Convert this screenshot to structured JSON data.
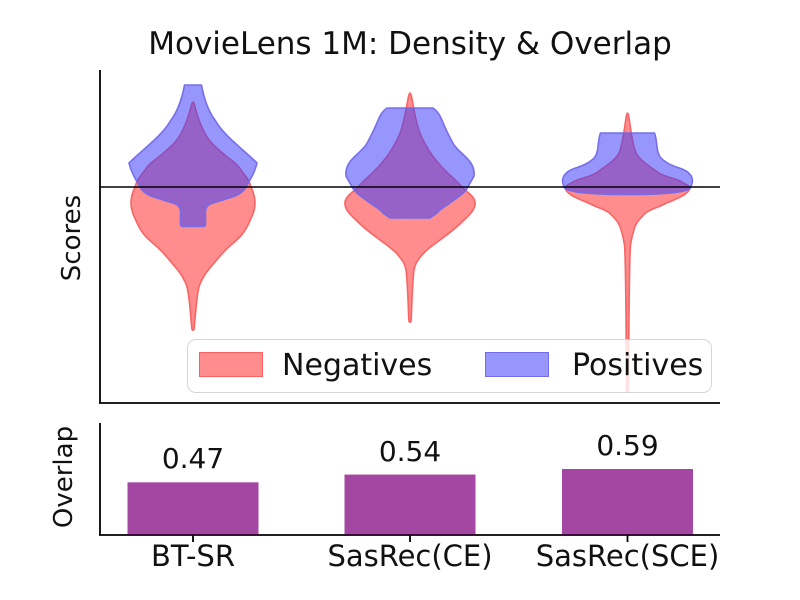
{
  "figure": {
    "title": "MovieLens 1M: Density & Overlap"
  },
  "violin_panel": {
    "ylabel": "Scores",
    "threshold_line_y": 0,
    "legend": [
      {
        "label": "Negatives"
      },
      {
        "label": "Positives"
      }
    ]
  },
  "bar_panel": {
    "ylabel": "Overlap"
  },
  "colors": {
    "negatives_fill": "rgba(255,48,48,0.55)",
    "negatives_edge": "rgba(250,95,95,0.95)",
    "positives_fill": "rgba(64,64,250,0.55)",
    "positives_edge": "rgba(115,105,235,0.95)",
    "bar_fill": "rgba(128,0,128,0.72)",
    "threshold_line": "#000000",
    "axis": "#000000",
    "legend_border": "#d5d5d5"
  },
  "chart_data": [
    {
      "type": "violin",
      "title": "MovieLens 1M: Density & Overlap",
      "ylabel": "Scores",
      "categories": [
        "BT-SR",
        "SasRec(CE)",
        "SasRec(SCE)"
      ],
      "threshold_line_y": 0,
      "y_axis_ticks": "none (unlabeled Scores axis)",
      "series": [
        {
          "name": "Negatives",
          "placement": "bulk just below the zero threshold line with long thin lower tails",
          "per_category": [
            {
              "category": "BT-SR",
              "shape": "wide lobe straddling/below zero, long tapering tail far down"
            },
            {
              "category": "SasRec(CE)",
              "shape": "wide lobe just below zero, long thin tail down; thin spike above zero up past positives cap"
            },
            {
              "category": "SasRec(SCE)",
              "shape": "narrow flat lobe hugging zero, very long thin tail reaching bottom of panel through legend"
            }
          ]
        },
        {
          "name": "Positives",
          "placement": "bulk above the zero threshold line, truncated caps at top",
          "per_category": [
            {
              "category": "BT-SR",
              "shape": "tall diamond above zero with narrow flat cap and short stem dipping below zero"
            },
            {
              "category": "SasRec(CE)",
              "shape": "broad rounded body above zero, trapezoid bottom dipping below zero"
            },
            {
              "category": "SasRec(SCE)",
              "shape": "short squat body concentrated tightly at zero line with flat cap"
            }
          ]
        }
      ],
      "legend_entries": [
        "Negatives",
        "Positives"
      ],
      "legend_position": "lower center inside axes"
    },
    {
      "type": "bar",
      "ylabel": "Overlap",
      "categories": [
        "BT-SR",
        "SasRec(CE)",
        "SasRec(SCE)"
      ],
      "values": [
        0.47,
        0.54,
        0.59
      ],
      "value_labels": [
        "0.47",
        "0.54",
        "0.59"
      ],
      "ylim": [
        0,
        1
      ],
      "grid": "off",
      "bar_color_hex_on_white": "#A64CA6"
    }
  ]
}
